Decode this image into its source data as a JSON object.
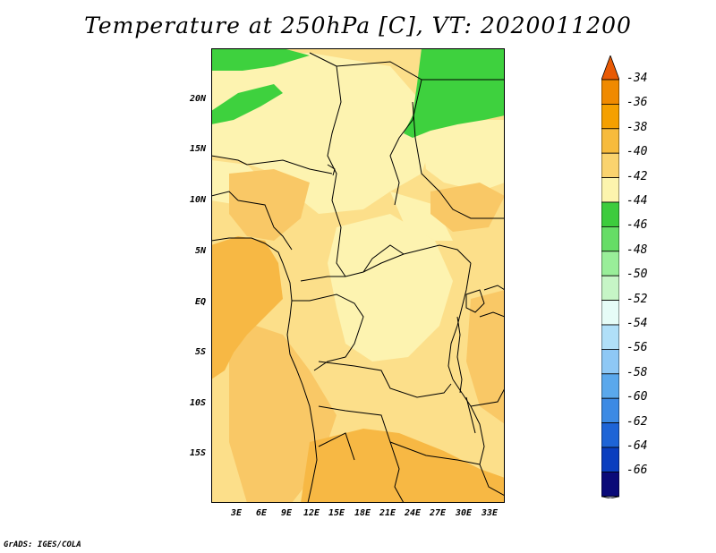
{
  "title": "Temperature at 250hPa [C], VT: 2020011200",
  "credit": "GrADS: IGES/COLA",
  "lat_labels": [
    "20N",
    "15N",
    "10N",
    "5N",
    "EQ",
    "5S",
    "10S",
    "15S"
  ],
  "lon_labels": [
    "3E",
    "6E",
    "9E",
    "12E",
    "15E",
    "18E",
    "21E",
    "24E",
    "27E",
    "30E",
    "33E"
  ],
  "colorbar": {
    "labels": [
      "-34",
      "-36",
      "-38",
      "-40",
      "-42",
      "-44",
      "-46",
      "-48",
      "-50",
      "-52",
      "-54",
      "-56",
      "-58",
      "-60",
      "-62",
      "-64",
      "-66"
    ],
    "colors": [
      "#e85a05",
      "#f08a00",
      "#f5a000",
      "#f7bb3c",
      "#fad36e",
      "#fcf4ad",
      "#3dcc3d",
      "#66dd66",
      "#99ee99",
      "#c6f5c6",
      "#e6fcf7",
      "#b0dff8",
      "#8ec8f5",
      "#5aa8ec",
      "#3c8ae4",
      "#1e64d6",
      "#0a3ebf",
      "#0a0a78",
      "#e0e0f8"
    ]
  },
  "palette": {
    "m40": "#f9c866",
    "m42": "#fcdf8a",
    "m44": "#fdf3b0",
    "m38": "#f7b844",
    "m46": "#3ed13e"
  }
}
